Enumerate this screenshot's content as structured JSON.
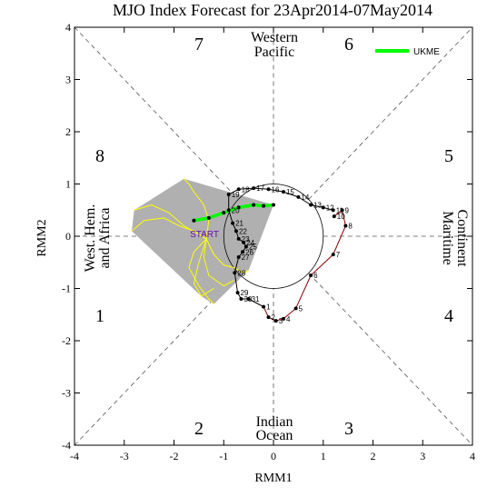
{
  "chart_data": {
    "type": "line",
    "title": "MJO Index Forecast for 23Apr2014-07May2014",
    "xlabel": "RMM1",
    "ylabel": "RMM2",
    "xlim": [
      -4,
      4
    ],
    "ylim": [
      -4,
      4
    ],
    "x_ticks": [
      "-4",
      "-3",
      "-2",
      "-1",
      "0",
      "1",
      "2",
      "3",
      "4"
    ],
    "y_ticks": [
      "-4",
      "-3",
      "-2",
      "-1",
      "0",
      "1",
      "2",
      "3",
      "4"
    ],
    "phase_numbers": [
      "1",
      "2",
      "3",
      "4",
      "5",
      "6",
      "7",
      "8"
    ],
    "regions": {
      "top": [
        "Western",
        "Pacific"
      ],
      "bottom": [
        "Indian",
        "Ocean"
      ],
      "left": [
        "West. Hem.",
        "and Africa"
      ],
      "right": [
        "Maritime",
        "Continent"
      ]
    },
    "start_label": "START",
    "legend": {
      "placement": "top-right",
      "label": "UKME",
      "color": "#00ff00"
    },
    "colors": {
      "observed": "#000000",
      "observed_older": "#8b0000",
      "ensemble": "#ffff00",
      "spread": "#b0b0b0",
      "mean": "#00ff00",
      "start": "#6a0dad",
      "diagonal": "#555555"
    },
    "observed": {
      "x": [
        1.22,
        1.38,
        1.45,
        1.2,
        0.75,
        0.45,
        0.2,
        0.05,
        -0.1,
        -0.2,
        -0.5,
        -0.65,
        -0.72,
        -0.78,
        -0.7,
        -0.62,
        -0.55,
        -0.6,
        -0.7,
        -0.75,
        -0.82,
        -0.9,
        -0.9,
        -0.7,
        -0.4,
        -0.1,
        0.2,
        0.5,
        0.75,
        1.0,
        1.2
      ],
      "y": [
        0.38,
        0.5,
        0.2,
        -0.35,
        -0.75,
        -1.38,
        -1.58,
        -1.62,
        -1.55,
        -1.35,
        -1.2,
        -1.2,
        -1.08,
        -0.7,
        -0.4,
        -0.3,
        -0.2,
        -0.12,
        -0.05,
        0.1,
        0.25,
        0.5,
        0.8,
        0.9,
        0.92,
        0.9,
        0.85,
        0.75,
        0.6,
        0.55,
        0.5
      ],
      "labels": [
        "10",
        "9",
        "8",
        "7",
        "6",
        "5",
        "4",
        "3",
        "2",
        "1",
        "31",
        "30",
        "29",
        "28",
        "27",
        "26",
        "25",
        "24",
        "23",
        "22",
        "21",
        "20",
        "19",
        "18",
        "17",
        "16",
        "15",
        "14",
        "13",
        "12",
        "11"
      ]
    },
    "start_point": {
      "x": -1.35,
      "y": -0.05
    },
    "mean": {
      "x": [
        0.0,
        -0.2,
        -0.4,
        -0.7,
        -1.0,
        -1.3,
        -1.6
      ],
      "y": [
        0.6,
        0.58,
        0.6,
        0.55,
        0.45,
        0.35,
        0.3
      ]
    },
    "ensemble_x": [
      [
        -1.35,
        -1.8,
        -2.1,
        -2.45,
        -2.8
      ],
      [
        -1.35,
        -1.6,
        -1.9,
        -2.2,
        -2.6,
        -2.85
      ],
      [
        -1.35,
        -1.5,
        -1.6,
        -1.45,
        -1.2
      ],
      [
        -1.35,
        -1.4,
        -1.3,
        -1.0,
        -0.8
      ],
      [
        -1.35,
        -1.6,
        -1.7,
        -1.5,
        -1.3,
        -1.2
      ],
      [
        -1.35,
        -1.2,
        -1.0,
        -0.8,
        -0.6,
        -0.5
      ],
      [
        -1.35,
        -1.3,
        -1.4,
        -1.6,
        -1.7,
        -1.8
      ]
    ],
    "ensemble_y": [
      [
        -0.05,
        0.2,
        0.45,
        0.6,
        0.5
      ],
      [
        -0.05,
        0.1,
        0.2,
        0.35,
        0.3,
        0.1
      ],
      [
        -0.05,
        -0.5,
        -0.9,
        -1.15,
        -1.0
      ],
      [
        -0.05,
        -0.4,
        -0.75,
        -0.95,
        -0.85
      ],
      [
        -0.05,
        -0.3,
        -0.6,
        -0.95,
        -1.2,
        -1.3
      ],
      [
        -0.05,
        -0.35,
        -0.55,
        -0.6,
        -0.7,
        -0.65
      ],
      [
        -0.05,
        0.3,
        0.6,
        0.85,
        1.0,
        1.1
      ]
    ]
  }
}
